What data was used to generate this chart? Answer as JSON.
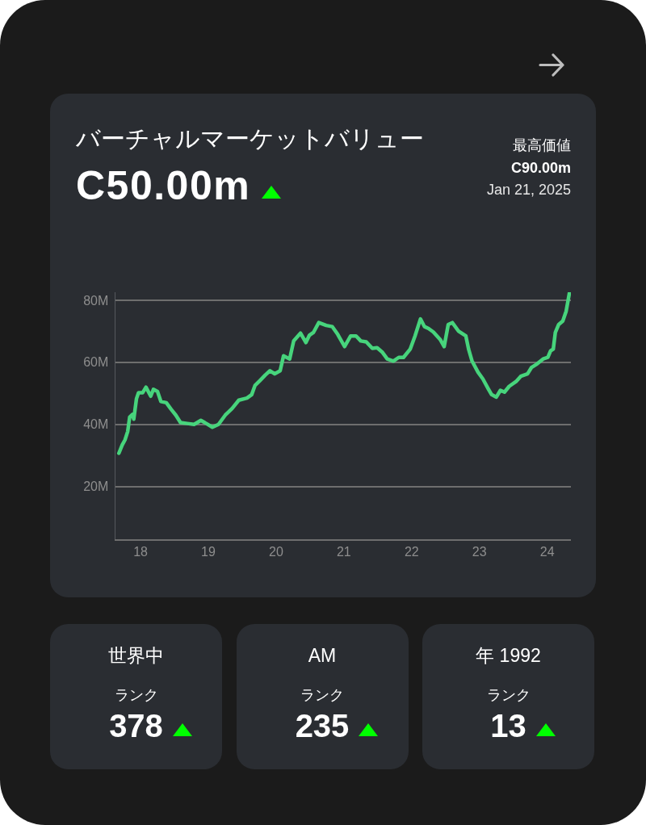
{
  "chart_data": [
    {
      "type": "line",
      "title": "バーチャルマーケットバリュー",
      "subtitle": "C50.00m",
      "annotations": [
        "最高価値",
        "C90.00m",
        "Jan 21, 2025"
      ],
      "x": [
        2017.68,
        2017.73,
        2017.77,
        2017.81,
        2017.84,
        2017.88,
        2017.9,
        2017.94,
        2017.97,
        2018.03,
        2018.08,
        2018.15,
        2018.19,
        2018.25,
        2018.3,
        2018.38,
        2018.45,
        2018.52,
        2018.59,
        2018.69,
        2018.79,
        2018.89,
        2018.97,
        2019.06,
        2019.15,
        2019.25,
        2019.35,
        2019.45,
        2019.57,
        2019.64,
        2019.69,
        2019.76,
        2019.84,
        2019.91,
        2019.98,
        2020.06,
        2020.11,
        2020.2,
        2020.26,
        2020.36,
        2020.44,
        2020.49,
        2020.55,
        2020.63,
        2020.74,
        2020.83,
        2020.91,
        2021.01,
        2021.1,
        2021.18,
        2021.25,
        2021.33,
        2021.42,
        2021.49,
        2021.57,
        2021.64,
        2021.73,
        2021.81,
        2021.88,
        2021.98,
        2022.05,
        2022.13,
        2022.19,
        2022.25,
        2022.32,
        2022.42,
        2022.48,
        2022.54,
        2022.6,
        2022.69,
        2022.8,
        2022.84,
        2022.89,
        2022.98,
        2023.05,
        2023.13,
        2023.18,
        2023.25,
        2023.31,
        2023.37,
        2023.44,
        2023.54,
        2023.61,
        2023.71,
        2023.77,
        2023.85,
        2023.94,
        2024.01,
        2024.05,
        2024.09,
        2024.12,
        2024.17,
        2024.23,
        2024.28,
        2024.33
      ],
      "series": [
        {
          "color": "#47d47c",
          "values": [
            30.7,
            33.4,
            35.0,
            37.7,
            42.4,
            43.2,
            41.7,
            48.3,
            50.2,
            50.2,
            52.0,
            49.1,
            51.3,
            50.6,
            47.4,
            47.0,
            44.9,
            43.0,
            40.6,
            40.3,
            40.0,
            41.3,
            40.3,
            39.1,
            40.0,
            43.0,
            45.1,
            47.8,
            48.5,
            49.6,
            52.6,
            54.1,
            55.9,
            57.3,
            56.3,
            57.3,
            62.1,
            61.1,
            66.9,
            69.4,
            66.4,
            68.7,
            69.6,
            72.8,
            71.9,
            71.5,
            69.0,
            65.1,
            68.5,
            68.5,
            66.9,
            66.6,
            64.5,
            64.7,
            63.2,
            61.1,
            60.4,
            61.6,
            61.6,
            64.3,
            68.5,
            74.0,
            71.5,
            70.9,
            69.8,
            67.4,
            65.1,
            72.2,
            72.8,
            70.1,
            68.5,
            64.3,
            60.5,
            56.8,
            54.7,
            51.5,
            49.6,
            48.8,
            51.0,
            50.4,
            52.3,
            53.8,
            55.5,
            56.3,
            58.4,
            59.5,
            61.1,
            61.6,
            63.7,
            64.3,
            69.6,
            72.2,
            73.3,
            76.5,
            82.6
          ]
        }
      ],
      "xlim": [
        2017.63,
        2024.35
      ],
      "xticks": [
        {
          "value": 2018,
          "label": "18"
        },
        {
          "value": 2019,
          "label": "19"
        },
        {
          "value": 2020,
          "label": "20"
        },
        {
          "value": 2021,
          "label": "21"
        },
        {
          "value": 2022,
          "label": "22"
        },
        {
          "value": 2023,
          "label": "23"
        },
        {
          "value": 2024,
          "label": "24"
        }
      ],
      "ylim": [
        3,
        82.6
      ],
      "yticks": [
        {
          "value": 20,
          "label": "20M"
        },
        {
          "value": 40,
          "label": "40M"
        },
        {
          "value": 60,
          "label": "60M"
        },
        {
          "value": 80,
          "label": "80M"
        }
      ],
      "grid": "y"
    },
    {
      "type": "other",
      "title": "世界中",
      "annotations": [
        "ランク",
        "378"
      ]
    },
    {
      "type": "other",
      "title": "AM",
      "annotations": [
        "ランク",
        "235"
      ]
    },
    {
      "type": "other",
      "title": "年 1992",
      "annotations": [
        "ランク",
        "13"
      ]
    }
  ]
}
